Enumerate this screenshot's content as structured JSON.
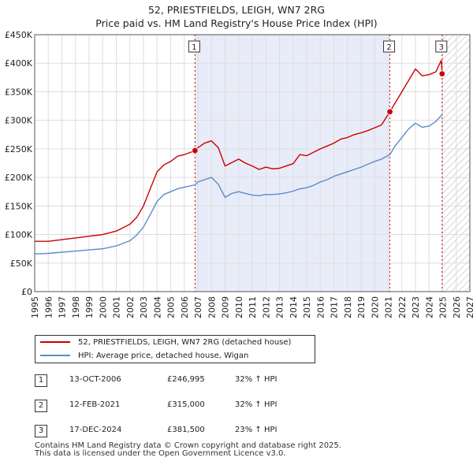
{
  "header": {
    "title": "52, PRIESTFIELDS, LEIGH, WN7 2RG",
    "subtitle": "Price paid vs. HM Land Registry's House Price Index (HPI)"
  },
  "chart_data": {
    "type": "line",
    "title": "52, PRIESTFIELDS, LEIGH, WN7 2RG",
    "subtitle": "Price paid vs. HM Land Registry's House Price Index (HPI)",
    "xlim": [
      1995,
      2027
    ],
    "ylim": [
      0,
      450000
    ],
    "x_ticks": [
      1995,
      1996,
      1997,
      1998,
      1999,
      2000,
      2001,
      2002,
      2003,
      2004,
      2005,
      2006,
      2007,
      2008,
      2009,
      2010,
      2011,
      2012,
      2013,
      2014,
      2015,
      2016,
      2017,
      2018,
      2019,
      2020,
      2021,
      2022,
      2023,
      2024,
      2025,
      2026,
      2027
    ],
    "y_ticks": [
      0,
      50000,
      100000,
      150000,
      200000,
      250000,
      300000,
      350000,
      400000,
      450000
    ],
    "y_tick_labels": [
      "£0",
      "£50K",
      "£100K",
      "£150K",
      "£200K",
      "£250K",
      "£300K",
      "£350K",
      "£400K",
      "£450K"
    ],
    "shaded_period": [
      2006.79,
      2021.12
    ],
    "hatched_from": 2024.96,
    "series": [
      {
        "name": "52, PRIESTFIELDS, LEIGH, WN7 2RG (detached house)",
        "color": "#cc0000",
        "x": [
          1995,
          1996,
          1997,
          1998,
          1999,
          2000,
          2001,
          2002,
          2002.5,
          2003,
          2003.5,
          2004,
          2004.5,
          2005,
          2005.5,
          2006,
          2006.79,
          2007,
          2007.5,
          2008,
          2008.5,
          2009,
          2009.5,
          2010,
          2010.5,
          2011,
          2011.5,
          2012,
          2012.5,
          2013,
          2013.5,
          2014,
          2014.5,
          2015,
          2015.5,
          2016,
          2016.5,
          2017,
          2017.5,
          2018,
          2018.5,
          2019,
          2019.5,
          2020,
          2020.5,
          2021.12,
          2021.5,
          2022,
          2022.5,
          2023,
          2023.5,
          2024,
          2024.5,
          2024.9,
          2024.96
        ],
        "values": [
          88000,
          88000,
          91000,
          94000,
          97000,
          100000,
          106000,
          118000,
          130000,
          150000,
          180000,
          210000,
          222000,
          228000,
          237000,
          240000,
          246995,
          252000,
          260000,
          264000,
          252000,
          220000,
          226000,
          232000,
          225000,
          220000,
          214000,
          218000,
          215000,
          216000,
          220000,
          224000,
          240000,
          238000,
          244000,
          250000,
          255000,
          260000,
          267000,
          270000,
          275000,
          278000,
          282000,
          287000,
          292000,
          315000,
          330000,
          350000,
          370000,
          390000,
          378000,
          380000,
          385000,
          405000,
          381500
        ]
      },
      {
        "name": "HPI: Average price, detached house, Wigan",
        "color": "#5b8cc8",
        "x": [
          1995,
          1996,
          1997,
          1998,
          1999,
          2000,
          2001,
          2002,
          2002.5,
          2003,
          2003.5,
          2004,
          2004.5,
          2005,
          2005.5,
          2006,
          2006.79,
          2007,
          2007.5,
          2008,
          2008.5,
          2009,
          2009.5,
          2010,
          2010.5,
          2011,
          2011.5,
          2012,
          2012.5,
          2013,
          2013.5,
          2014,
          2014.5,
          2015,
          2015.5,
          2016,
          2016.5,
          2017,
          2017.5,
          2018,
          2018.5,
          2019,
          2019.5,
          2020,
          2020.5,
          2021.12,
          2021.5,
          2022,
          2022.5,
          2023,
          2023.5,
          2024,
          2024.5,
          2024.96
        ],
        "values": [
          66000,
          67000,
          69000,
          71000,
          73000,
          75000,
          80000,
          89000,
          99000,
          113000,
          135000,
          158000,
          170000,
          175000,
          180000,
          183000,
          187000,
          192000,
          196000,
          200000,
          188000,
          165000,
          172000,
          175000,
          172000,
          169000,
          168000,
          170000,
          170000,
          171000,
          173000,
          176000,
          180000,
          182000,
          186000,
          192000,
          196000,
          202000,
          206000,
          210000,
          214000,
          218000,
          223000,
          228000,
          232000,
          240000,
          255000,
          270000,
          285000,
          295000,
          288000,
          290000,
          298000,
          310000
        ]
      }
    ],
    "events": [
      {
        "id": "1",
        "x": 2006.79,
        "value": 246995
      },
      {
        "id": "2",
        "x": 2021.12,
        "value": 315000
      },
      {
        "id": "3",
        "x": 2024.96,
        "value": 381500
      }
    ]
  },
  "legend": {
    "items": [
      {
        "label": "52, PRIESTFIELDS, LEIGH, WN7 2RG (detached house)",
        "color": "#cc0000"
      },
      {
        "label": "HPI: Average price, detached house, Wigan",
        "color": "#5b8cc8"
      }
    ]
  },
  "table": {
    "rows": [
      {
        "id": "1",
        "date": "13-OCT-2006",
        "price": "£246,995",
        "hpi": "32% ↑ HPI"
      },
      {
        "id": "2",
        "date": "12-FEB-2021",
        "price": "£315,000",
        "hpi": "32% ↑ HPI"
      },
      {
        "id": "3",
        "date": "17-DEC-2024",
        "price": "£381,500",
        "hpi": "23% ↑ HPI"
      }
    ]
  },
  "footer": {
    "line1": "Contains HM Land Registry data © Crown copyright and database right 2025.",
    "line2": "This data is licensed under the Open Government Licence v3.0."
  }
}
